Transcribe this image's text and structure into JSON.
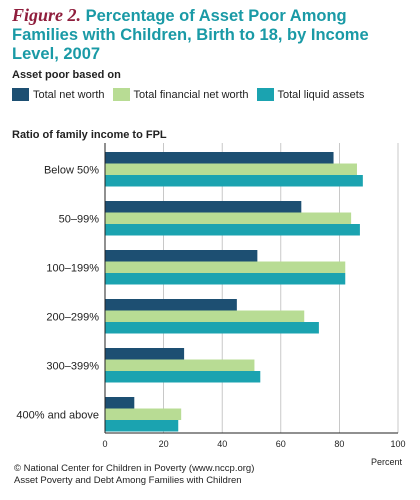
{
  "figure_label": "Figure 2.",
  "title": "Percentage of Asset Poor Among Families with Children, Birth to 18, by Income Level, 2007",
  "legend_heading": "Asset poor based on",
  "subtitle": "Ratio of family income to FPL",
  "footer": {
    "line1": "© National Center for Children in Poverty (www.nccp.org)",
    "line2": "Asset Poverty and Debt Among Families with Children"
  },
  "colors": {
    "title": "#1a9aa6",
    "figure_label": "#8f1d3c",
    "grid": "#bbbbbb"
  },
  "chart_data": {
    "type": "bar",
    "orientation": "horizontal",
    "title": "Percentage of Asset Poor Among Families with Children, Birth to 18, by Income Level, 2007",
    "xlabel": "Percent",
    "ylabel": "Ratio of family income to FPL",
    "xlim": [
      0,
      100
    ],
    "xticks": [
      0,
      20,
      40,
      60,
      80,
      100
    ],
    "grid": true,
    "legend_position": "top",
    "categories": [
      "Below 50%",
      "50–99%",
      "100–199%",
      "200–299%",
      "300–399%",
      "400% and above"
    ],
    "series": [
      {
        "name": "Total net worth",
        "color": "#1d4f72",
        "values": [
          78,
          67,
          52,
          45,
          27,
          10
        ]
      },
      {
        "name": "Total financial net worth",
        "color": "#b8dc94",
        "values": [
          86,
          84,
          82,
          68,
          51,
          26
        ]
      },
      {
        "name": "Total liquid assets",
        "color": "#1ba3b0",
        "values": [
          88,
          87,
          82,
          73,
          53,
          25
        ]
      }
    ]
  }
}
